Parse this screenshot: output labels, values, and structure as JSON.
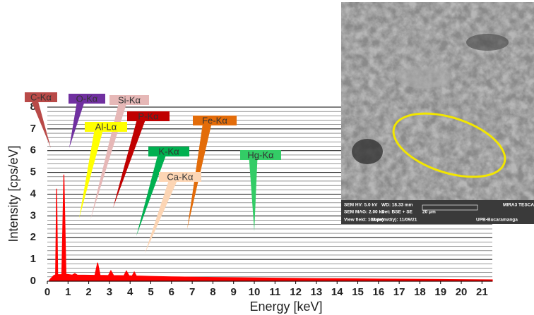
{
  "chart_data": {
    "type": "area",
    "x_label": "Energy [keV]",
    "y_label": "Intensity [cps/eV]",
    "x": [
      0.1,
      0.3,
      0.4,
      0.45,
      0.5,
      0.7,
      0.8,
      0.9,
      1.2,
      1.33,
      1.45,
      2.3,
      2.43,
      2.55,
      2.95,
      3.07,
      3.2,
      3.7,
      3.82,
      3.95,
      4.1,
      4.2,
      4.3,
      5,
      6,
      8,
      10,
      13,
      16,
      19,
      21.5
    ],
    "values": [
      0.05,
      0.25,
      0.3,
      4.25,
      0.3,
      0.3,
      4.9,
      0.32,
      0.28,
      0.35,
      0.28,
      0.27,
      0.85,
      0.27,
      0.26,
      0.48,
      0.26,
      0.25,
      0.47,
      0.25,
      0.24,
      0.42,
      0.24,
      0.22,
      0.2,
      0.17,
      0.15,
      0.12,
      0.1,
      0.08,
      0.06
    ],
    "color": "#ff0000",
    "xlim": [
      0,
      21.5
    ],
    "xticks": [
      0,
      1,
      2,
      3,
      4,
      5,
      6,
      7,
      8,
      9,
      10,
      11,
      12,
      13,
      14,
      15,
      16,
      17,
      18,
      19,
      20,
      21
    ],
    "ylim": [
      0,
      8
    ],
    "yticks": [
      0,
      1,
      2,
      3,
      4,
      5,
      6,
      7,
      8
    ],
    "grid": true,
    "annotations": [
      {
        "text": "C-Kα",
        "color": "#b94a48"
      },
      {
        "text": "O-Kα",
        "color": "#7030a0"
      },
      {
        "text": "Si-Kα",
        "color": "#e6b8b7"
      },
      {
        "text": "Al-Lα",
        "color": "#ffff00"
      },
      {
        "text": "P-Kα",
        "color": "#c00000"
      },
      {
        "text": "Fe-Kα",
        "color": "#e36c09"
      },
      {
        "text": "K-Kα",
        "color": "#00b050"
      },
      {
        "text": "Ca-Kα",
        "color": "#fcd5b4"
      },
      {
        "text": "Hg-Kα",
        "color": "#33cc66"
      }
    ]
  },
  "sem_image": {
    "info": [
      "SEM HV: 5.0 kV",
      "WD: 18.33 mm",
      "MIRA3 TESCA",
      "SEM MAG: 2.00 kx",
      "Det: BSE + SE",
      "20 μm",
      "View field: 104 μm",
      "Date(m/d/y): 11/09/21",
      "UPB-Bucaramanga"
    ]
  }
}
